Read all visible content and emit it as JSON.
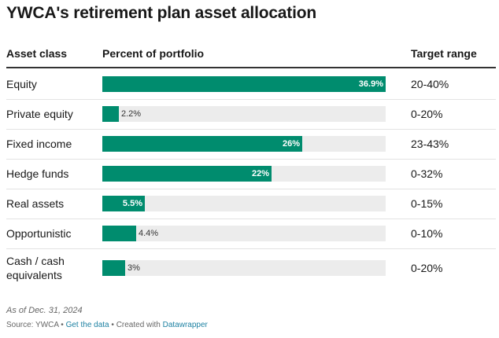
{
  "title": "YWCA's retirement plan asset allocation",
  "columns": {
    "asset_class": "Asset class",
    "percent": "Percent of portfolio",
    "target": "Target range"
  },
  "chart_data": {
    "type": "bar",
    "title": "YWCA's retirement plan asset allocation",
    "orientation": "horizontal",
    "xlim": [
      0,
      36.9
    ],
    "categories": [
      "Equity",
      "Private equity",
      "Fixed income",
      "Hedge funds",
      "Real assets",
      "Opportunistic",
      "Cash / cash equivalents"
    ],
    "values": [
      36.9,
      2.2,
      26,
      22,
      5.5,
      4.4,
      3
    ],
    "value_labels": [
      "36.9%",
      "2.2%",
      "26%",
      "22%",
      "5.5%",
      "4.4%",
      "3%"
    ],
    "target_ranges": [
      "20-40%",
      "0-20%",
      "23-43%",
      "0-32%",
      "0-15%",
      "0-10%",
      "0-20%"
    ],
    "color": "#008c6e",
    "track_color": "#ececec"
  },
  "rows": [
    {
      "label_lines": [
        "Equity"
      ],
      "value": 36.9,
      "value_label": "36.9%",
      "target": "20-40%"
    },
    {
      "label_lines": [
        "Private equity"
      ],
      "value": 2.2,
      "value_label": "2.2%",
      "target": "0-20%"
    },
    {
      "label_lines": [
        "Fixed income"
      ],
      "value": 26,
      "value_label": "26%",
      "target": "23-43%"
    },
    {
      "label_lines": [
        "Hedge funds"
      ],
      "value": 22,
      "value_label": "22%",
      "target": "0-32%"
    },
    {
      "label_lines": [
        "Real assets"
      ],
      "value": 5.5,
      "value_label": "5.5%",
      "target": "0-15%"
    },
    {
      "label_lines": [
        "Opportunistic"
      ],
      "value": 4.4,
      "value_label": "4.4%",
      "target": "0-10%"
    },
    {
      "label_lines": [
        "Cash / cash",
        "equivalents"
      ],
      "value": 3,
      "value_label": "3%",
      "target": "0-20%"
    }
  ],
  "footer": {
    "note": "As of Dec. 31, 2024",
    "source_prefix": "Source: YWCA",
    "separator": " • ",
    "get_data": "Get the data",
    "created_with": "Created with",
    "tool": "Datawrapper"
  }
}
